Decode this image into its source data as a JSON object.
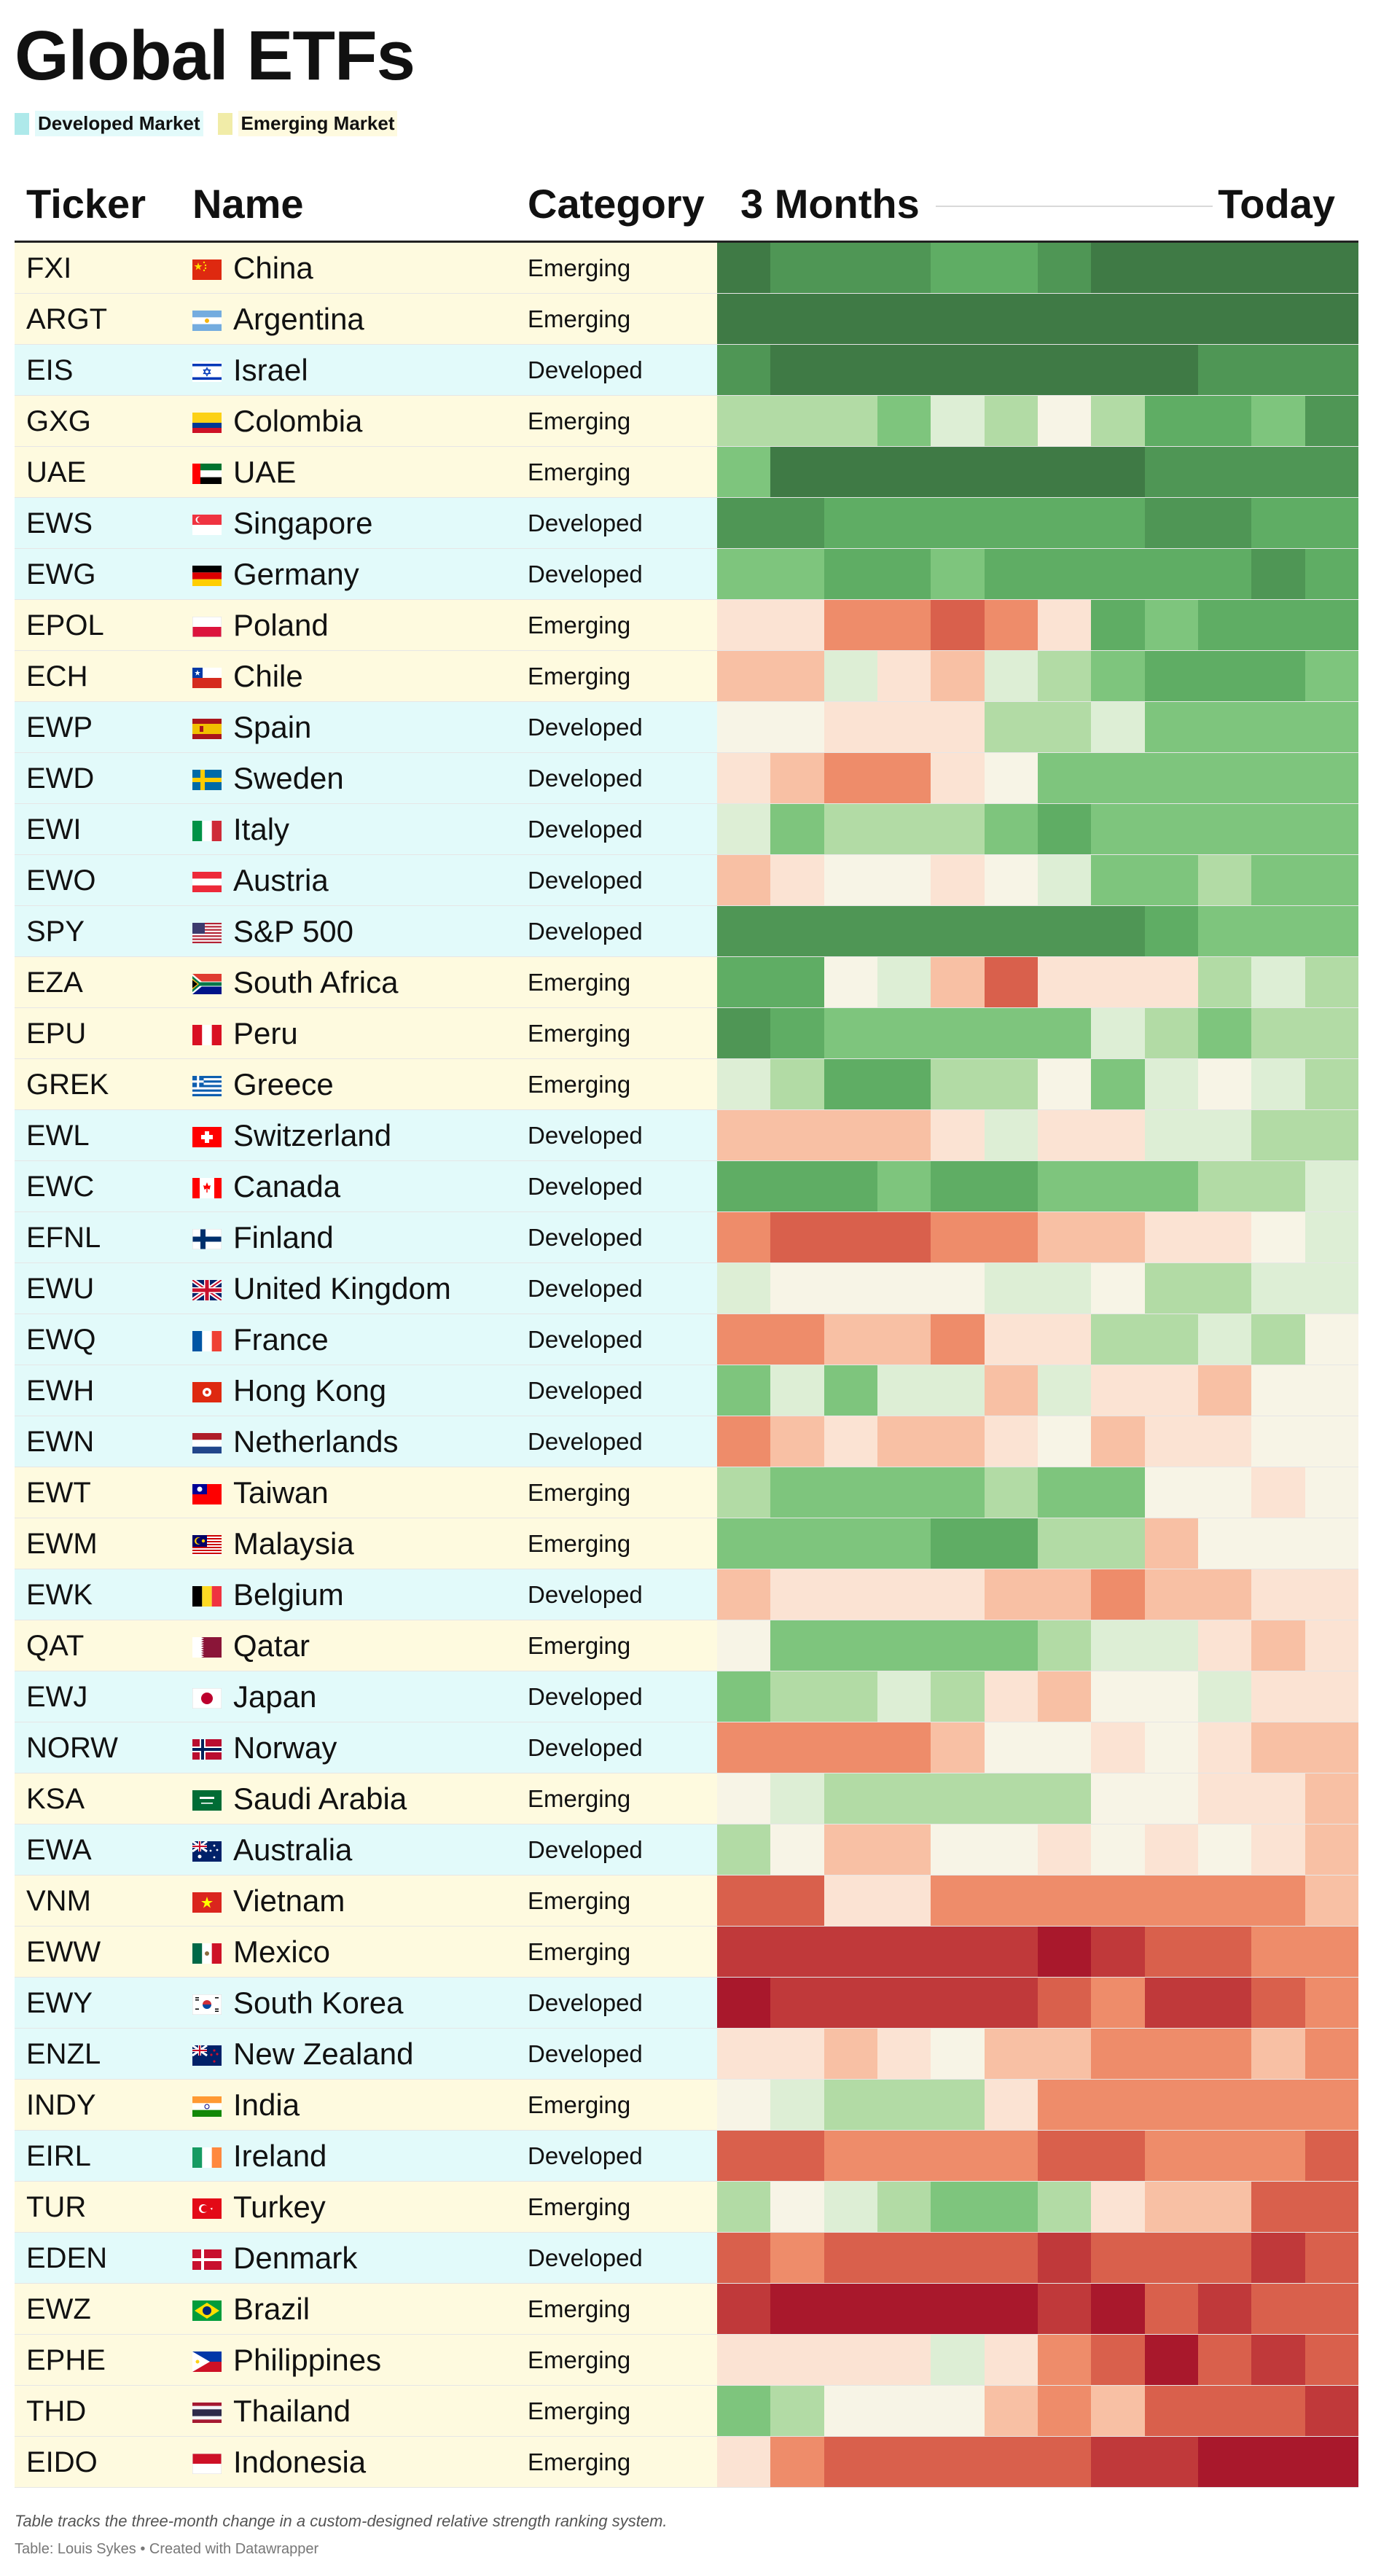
{
  "title": "Global ETFs",
  "legend": [
    {
      "label": "Developed Market",
      "color": "#aee9ea"
    },
    {
      "label": "Emerging Market",
      "color": "#f1eca8"
    }
  ],
  "row_colors": {
    "Developed": "#e2fafa",
    "Emerging": "#fefadf"
  },
  "headers": {
    "ticker": "Ticker",
    "name": "Name",
    "category": "Category",
    "start": "3 Months",
    "end": "Today"
  },
  "footer": {
    "note": "Table tracks the three-month change in a custom-designed relative strength ranking system.",
    "credit": "Table: Louis Sykes • Created with Datawrapper"
  },
  "palette": {
    "G4": "#3f7a45",
    "G3": "#4f9655",
    "G2": "#5fad64",
    "G1": "#7ec57d",
    "G0": "#b2dba5",
    "LG": "#ddeed5",
    "N": "#f7f4e6",
    "LR": "#fbe3d3",
    "P": "#f8c0a4",
    "O": "#ee8c6a",
    "R": "#d9604c",
    "DR": "#c0393a",
    "DDR": "#a9182c"
  },
  "chart_data": {
    "type": "heatmap",
    "title": "Global ETFs",
    "xlabel": "",
    "ylabel": "",
    "columns_start_label": "3 Months",
    "columns_end_label": "Today",
    "scale": [
      "G4",
      "G3",
      "G2",
      "G1",
      "G0",
      "LG",
      "N",
      "LR",
      "P",
      "O",
      "R",
      "DR",
      "DDR"
    ],
    "rows": [
      {
        "ticker": "FXI",
        "name": "China",
        "category": "Emerging",
        "flag": "cn",
        "cells": [
          "G4",
          "G3",
          "G3",
          "G3",
          "G2",
          "G2",
          "G3",
          "G4",
          "G4",
          "G4",
          "G4",
          "G4"
        ]
      },
      {
        "ticker": "ARGT",
        "name": "Argentina",
        "category": "Emerging",
        "flag": "ar",
        "cells": [
          "G4",
          "G4",
          "G4",
          "G4",
          "G4",
          "G4",
          "G4",
          "G4",
          "G4",
          "G4",
          "G4",
          "G4"
        ]
      },
      {
        "ticker": "EIS",
        "name": "Israel",
        "category": "Developed",
        "flag": "il",
        "cells": [
          "G3",
          "G4",
          "G4",
          "G4",
          "G4",
          "G4",
          "G4",
          "G4",
          "G4",
          "G3",
          "G3",
          "G3"
        ]
      },
      {
        "ticker": "GXG",
        "name": "Colombia",
        "category": "Emerging",
        "flag": "co",
        "cells": [
          "G0",
          "G0",
          "G0",
          "G1",
          "LG",
          "G0",
          "N",
          "G0",
          "G2",
          "G2",
          "G1",
          "G3"
        ]
      },
      {
        "ticker": "UAE",
        "name": "UAE",
        "category": "Emerging",
        "flag": "ae",
        "cells": [
          "G1",
          "G4",
          "G4",
          "G4",
          "G4",
          "G4",
          "G4",
          "G4",
          "G3",
          "G3",
          "G3",
          "G3"
        ]
      },
      {
        "ticker": "EWS",
        "name": "Singapore",
        "category": "Developed",
        "flag": "sg",
        "cells": [
          "G3",
          "G3",
          "G2",
          "G2",
          "G2",
          "G2",
          "G2",
          "G2",
          "G3",
          "G3",
          "G2",
          "G2"
        ]
      },
      {
        "ticker": "EWG",
        "name": "Germany",
        "category": "Developed",
        "flag": "de",
        "cells": [
          "G1",
          "G1",
          "G2",
          "G2",
          "G1",
          "G2",
          "G2",
          "G2",
          "G2",
          "G2",
          "G3",
          "G2"
        ]
      },
      {
        "ticker": "EPOL",
        "name": "Poland",
        "category": "Emerging",
        "flag": "pl",
        "cells": [
          "LR",
          "LR",
          "O",
          "O",
          "R",
          "O",
          "LR",
          "G2",
          "G1",
          "G2",
          "G2",
          "G2"
        ]
      },
      {
        "ticker": "ECH",
        "name": "Chile",
        "category": "Emerging",
        "flag": "cl",
        "cells": [
          "P",
          "P",
          "LG",
          "LR",
          "P",
          "LG",
          "G0",
          "G1",
          "G2",
          "G2",
          "G2",
          "G1"
        ]
      },
      {
        "ticker": "EWP",
        "name": "Spain",
        "category": "Developed",
        "flag": "es",
        "cells": [
          "N",
          "N",
          "LR",
          "LR",
          "LR",
          "G0",
          "G0",
          "LG",
          "G1",
          "G1",
          "G1",
          "G1"
        ]
      },
      {
        "ticker": "EWD",
        "name": "Sweden",
        "category": "Developed",
        "flag": "se",
        "cells": [
          "LR",
          "P",
          "O",
          "O",
          "LR",
          "N",
          "G1",
          "G1",
          "G1",
          "G1",
          "G1",
          "G1"
        ]
      },
      {
        "ticker": "EWI",
        "name": "Italy",
        "category": "Developed",
        "flag": "it",
        "cells": [
          "LG",
          "G1",
          "G0",
          "G0",
          "G0",
          "G1",
          "G2",
          "G1",
          "G1",
          "G1",
          "G1",
          "G1"
        ]
      },
      {
        "ticker": "EWO",
        "name": "Austria",
        "category": "Developed",
        "flag": "at",
        "cells": [
          "P",
          "LR",
          "N",
          "N",
          "LR",
          "N",
          "LG",
          "G1",
          "G1",
          "G0",
          "G1",
          "G1"
        ]
      },
      {
        "ticker": "SPY",
        "name": "S&P 500",
        "category": "Developed",
        "flag": "us",
        "cells": [
          "G3",
          "G3",
          "G3",
          "G3",
          "G3",
          "G3",
          "G3",
          "G3",
          "G2",
          "G1",
          "G1",
          "G1"
        ]
      },
      {
        "ticker": "EZA",
        "name": "South Africa",
        "category": "Emerging",
        "flag": "za",
        "cells": [
          "G2",
          "G2",
          "N",
          "LG",
          "P",
          "R",
          "LR",
          "LR",
          "LR",
          "G0",
          "LG",
          "G0"
        ]
      },
      {
        "ticker": "EPU",
        "name": "Peru",
        "category": "Emerging",
        "flag": "pe",
        "cells": [
          "G3",
          "G2",
          "G1",
          "G1",
          "G1",
          "G1",
          "G1",
          "LG",
          "G0",
          "G1",
          "G0",
          "G0"
        ]
      },
      {
        "ticker": "GREK",
        "name": "Greece",
        "category": "Emerging",
        "flag": "gr",
        "cells": [
          "LG",
          "G0",
          "G2",
          "G2",
          "G0",
          "G0",
          "N",
          "G1",
          "LG",
          "N",
          "LG",
          "G0"
        ]
      },
      {
        "ticker": "EWL",
        "name": "Switzerland",
        "category": "Developed",
        "flag": "ch",
        "cells": [
          "P",
          "P",
          "P",
          "P",
          "LR",
          "LG",
          "LR",
          "LR",
          "LG",
          "LG",
          "G0",
          "G0"
        ]
      },
      {
        "ticker": "EWC",
        "name": "Canada",
        "category": "Developed",
        "flag": "ca",
        "cells": [
          "G2",
          "G2",
          "G2",
          "G1",
          "G2",
          "G2",
          "G1",
          "G1",
          "G1",
          "G0",
          "G0",
          "LG"
        ]
      },
      {
        "ticker": "EFNL",
        "name": "Finland",
        "category": "Developed",
        "flag": "fi",
        "cells": [
          "O",
          "R",
          "R",
          "R",
          "O",
          "O",
          "P",
          "P",
          "LR",
          "LR",
          "N",
          "LG"
        ]
      },
      {
        "ticker": "EWU",
        "name": "United Kingdom",
        "category": "Developed",
        "flag": "gb",
        "cells": [
          "LG",
          "N",
          "N",
          "N",
          "N",
          "LG",
          "LG",
          "N",
          "G0",
          "G0",
          "LG",
          "LG"
        ]
      },
      {
        "ticker": "EWQ",
        "name": "France",
        "category": "Developed",
        "flag": "fr",
        "cells": [
          "O",
          "O",
          "P",
          "P",
          "O",
          "LR",
          "LR",
          "G0",
          "G0",
          "LG",
          "G0",
          "N"
        ]
      },
      {
        "ticker": "EWH",
        "name": "Hong Kong",
        "category": "Developed",
        "flag": "hk",
        "cells": [
          "G1",
          "LG",
          "G1",
          "LG",
          "LG",
          "P",
          "LG",
          "LR",
          "LR",
          "P",
          "N",
          "N"
        ]
      },
      {
        "ticker": "EWN",
        "name": "Netherlands",
        "category": "Developed",
        "flag": "nl",
        "cells": [
          "O",
          "P",
          "LR",
          "P",
          "P",
          "LR",
          "N",
          "P",
          "LR",
          "LR",
          "N",
          "N"
        ]
      },
      {
        "ticker": "EWT",
        "name": "Taiwan",
        "category": "Emerging",
        "flag": "tw",
        "cells": [
          "G0",
          "G1",
          "G1",
          "G1",
          "G1",
          "G0",
          "G1",
          "G1",
          "N",
          "N",
          "LR",
          "N"
        ]
      },
      {
        "ticker": "EWM",
        "name": "Malaysia",
        "category": "Emerging",
        "flag": "my",
        "cells": [
          "G1",
          "G1",
          "G1",
          "G1",
          "G2",
          "G2",
          "G0",
          "G0",
          "P",
          "N",
          "N",
          "N"
        ]
      },
      {
        "ticker": "EWK",
        "name": "Belgium",
        "category": "Developed",
        "flag": "be",
        "cells": [
          "P",
          "LR",
          "LR",
          "LR",
          "LR",
          "P",
          "P",
          "O",
          "P",
          "P",
          "LR",
          "LR"
        ]
      },
      {
        "ticker": "QAT",
        "name": "Qatar",
        "category": "Emerging",
        "flag": "qa",
        "cells": [
          "N",
          "G1",
          "G1",
          "G1",
          "G1",
          "G1",
          "G0",
          "LG",
          "LG",
          "LR",
          "P",
          "LR"
        ]
      },
      {
        "ticker": "EWJ",
        "name": "Japan",
        "category": "Developed",
        "flag": "jp",
        "cells": [
          "G1",
          "G0",
          "G0",
          "LG",
          "G0",
          "LR",
          "P",
          "N",
          "N",
          "LG",
          "LR",
          "LR"
        ]
      },
      {
        "ticker": "NORW",
        "name": "Norway",
        "category": "Developed",
        "flag": "no",
        "cells": [
          "O",
          "O",
          "O",
          "O",
          "P",
          "N",
          "N",
          "LR",
          "N",
          "LR",
          "P",
          "P"
        ]
      },
      {
        "ticker": "KSA",
        "name": "Saudi Arabia",
        "category": "Emerging",
        "flag": "sa",
        "cells": [
          "N",
          "LG",
          "G0",
          "G0",
          "G0",
          "G0",
          "G0",
          "N",
          "N",
          "LR",
          "LR",
          "P"
        ]
      },
      {
        "ticker": "EWA",
        "name": "Australia",
        "category": "Developed",
        "flag": "au",
        "cells": [
          "G0",
          "N",
          "P",
          "P",
          "N",
          "N",
          "LR",
          "N",
          "LR",
          "N",
          "LR",
          "P"
        ]
      },
      {
        "ticker": "VNM",
        "name": "Vietnam",
        "category": "Emerging",
        "flag": "vn",
        "cells": [
          "R",
          "R",
          "LR",
          "LR",
          "O",
          "O",
          "O",
          "O",
          "O",
          "O",
          "O",
          "P"
        ]
      },
      {
        "ticker": "EWW",
        "name": "Mexico",
        "category": "Emerging",
        "flag": "mx",
        "cells": [
          "DR",
          "DR",
          "DR",
          "DR",
          "DR",
          "DR",
          "DDR",
          "DR",
          "R",
          "R",
          "O",
          "O"
        ]
      },
      {
        "ticker": "EWY",
        "name": "South Korea",
        "category": "Developed",
        "flag": "kr",
        "cells": [
          "DDR",
          "DR",
          "DR",
          "DR",
          "DR",
          "DR",
          "R",
          "O",
          "DR",
          "DR",
          "R",
          "O"
        ]
      },
      {
        "ticker": "ENZL",
        "name": "New Zealand",
        "category": "Developed",
        "flag": "nz",
        "cells": [
          "LR",
          "LR",
          "P",
          "LR",
          "N",
          "P",
          "P",
          "O",
          "O",
          "O",
          "P",
          "O"
        ]
      },
      {
        "ticker": "INDY",
        "name": "India",
        "category": "Emerging",
        "flag": "in",
        "cells": [
          "N",
          "LG",
          "G0",
          "G0",
          "G0",
          "LR",
          "O",
          "O",
          "O",
          "O",
          "O",
          "O"
        ]
      },
      {
        "ticker": "EIRL",
        "name": "Ireland",
        "category": "Developed",
        "flag": "ie",
        "cells": [
          "R",
          "R",
          "O",
          "O",
          "O",
          "O",
          "R",
          "R",
          "O",
          "O",
          "O",
          "R"
        ]
      },
      {
        "ticker": "TUR",
        "name": "Turkey",
        "category": "Emerging",
        "flag": "tr",
        "cells": [
          "G0",
          "N",
          "LG",
          "G0",
          "G1",
          "G1",
          "G0",
          "LR",
          "P",
          "P",
          "R",
          "R"
        ]
      },
      {
        "ticker": "EDEN",
        "name": "Denmark",
        "category": "Developed",
        "flag": "dk",
        "cells": [
          "R",
          "O",
          "R",
          "R",
          "R",
          "R",
          "DR",
          "R",
          "R",
          "R",
          "DR",
          "R"
        ]
      },
      {
        "ticker": "EWZ",
        "name": "Brazil",
        "category": "Emerging",
        "flag": "br",
        "cells": [
          "DR",
          "DDR",
          "DDR",
          "DDR",
          "DDR",
          "DDR",
          "DR",
          "DDR",
          "R",
          "DR",
          "R",
          "R"
        ]
      },
      {
        "ticker": "EPHE",
        "name": "Philippines",
        "category": "Emerging",
        "flag": "ph",
        "cells": [
          "LR",
          "LR",
          "LR",
          "LR",
          "LG",
          "LR",
          "O",
          "R",
          "DDR",
          "R",
          "DR",
          "R"
        ]
      },
      {
        "ticker": "THD",
        "name": "Thailand",
        "category": "Emerging",
        "flag": "th",
        "cells": [
          "G1",
          "G0",
          "N",
          "N",
          "N",
          "P",
          "O",
          "P",
          "R",
          "R",
          "R",
          "DR"
        ]
      },
      {
        "ticker": "EIDO",
        "name": "Indonesia",
        "category": "Emerging",
        "flag": "id",
        "cells": [
          "LR",
          "O",
          "R",
          "R",
          "R",
          "R",
          "R",
          "DR",
          "DR",
          "DDR",
          "DDR",
          "DDR"
        ]
      }
    ]
  }
}
